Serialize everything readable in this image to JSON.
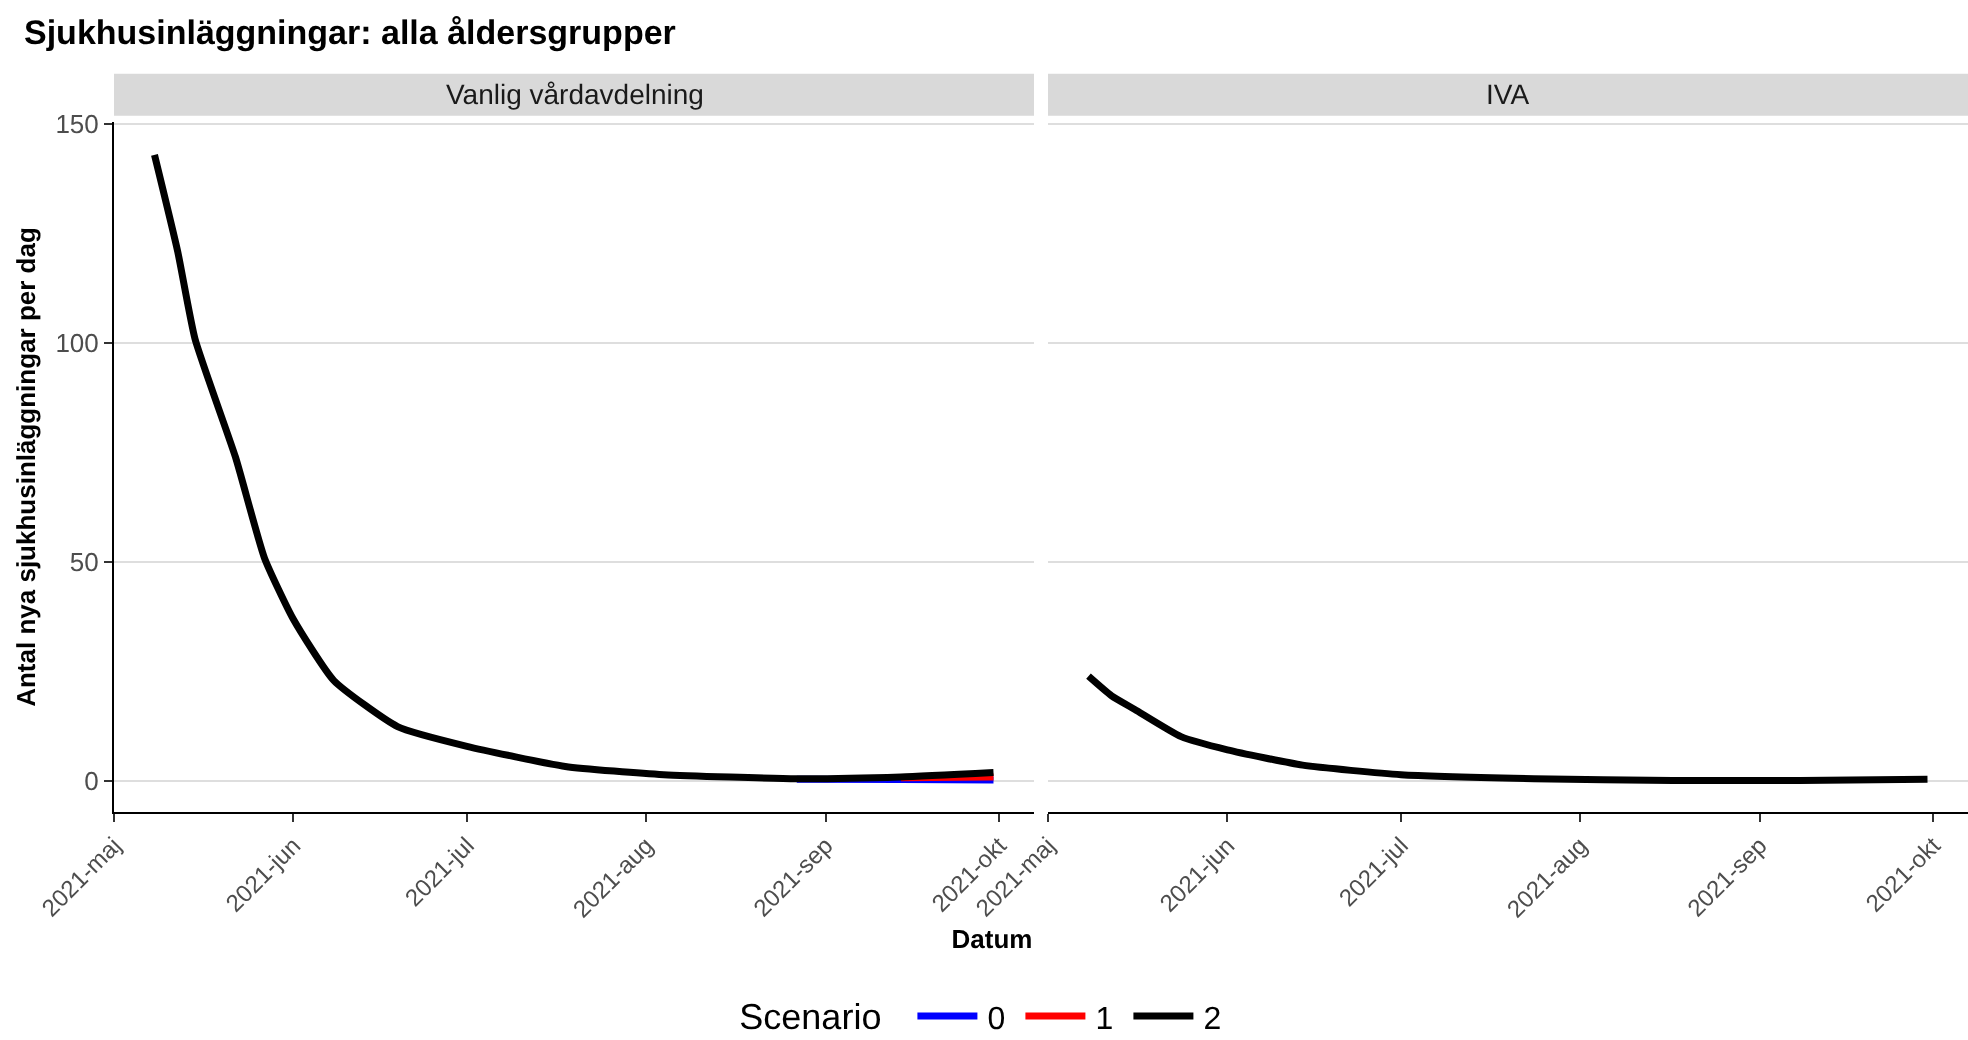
{
  "chart_data": [
    {
      "type": "line",
      "title": "Sjukhusinläggningar: alla åldersgrupper",
      "xlabel": "Datum",
      "ylabel": "Antal nya sjukhusinläggningar per dag",
      "legend_title": "Scenario",
      "legend": "bottom",
      "grid": "y",
      "annotations": [
        "Vanlig vårdavdelning"
      ],
      "xlim": [
        "2021-05-01",
        "2021-10-07"
      ],
      "xticks": [
        {
          "value": "2021-05-01",
          "label": "2021-maj"
        },
        {
          "value": "2021-06-01",
          "label": "2021-jun"
        },
        {
          "value": "2021-07-01",
          "label": "2021-jul"
        },
        {
          "value": "2021-08-01",
          "label": "2021-aug"
        },
        {
          "value": "2021-09-01",
          "label": "2021-sep"
        },
        {
          "value": "2021-10-01",
          "label": "2021-okt"
        }
      ],
      "ylim": [
        -7,
        150.5
      ],
      "yticks": [
        0,
        50,
        100,
        150
      ],
      "series": [
        {
          "name": "0",
          "color": "#0000ff",
          "x": [
            "2021-08-27",
            "2021-09-14",
            "2021-09-30"
          ],
          "values": [
            0.5,
            0.4,
            0.3
          ]
        },
        {
          "name": "1",
          "color": "#ff0000",
          "x": [
            "2021-09-14",
            "2021-09-30"
          ],
          "values": [
            0.8,
            1
          ]
        },
        {
          "name": "2",
          "color": "#000000",
          "x": [
            "2021-05-08",
            "2021-05-12",
            "2021-05-15",
            "2021-05-22",
            "2021-05-27",
            "2021-06-01",
            "2021-06-08",
            "2021-06-19",
            "2021-07-01",
            "2021-07-18",
            "2021-08-04",
            "2021-08-27",
            "2021-09-14",
            "2021-09-30"
          ],
          "values": [
            143,
            121,
            101,
            74,
            51,
            37,
            23,
            12.5,
            8,
            3.4,
            1.5,
            0.6,
            1,
            2
          ]
        }
      ]
    },
    {
      "type": "line",
      "annotations": [
        "IVA"
      ],
      "tick_labels": "x",
      "grid": "y",
      "xlim": [
        "2021-05-01",
        "2021-10-07"
      ],
      "xticks": [
        {
          "value": "2021-05-01",
          "label": "2021-maj"
        },
        {
          "value": "2021-06-01",
          "label": "2021-jun"
        },
        {
          "value": "2021-07-01",
          "label": "2021-jul"
        },
        {
          "value": "2021-08-01",
          "label": "2021-aug"
        },
        {
          "value": "2021-09-01",
          "label": "2021-sep"
        },
        {
          "value": "2021-10-01",
          "label": "2021-okt"
        }
      ],
      "ylim": [
        -7,
        150.5
      ],
      "yticks": [
        0,
        50,
        100,
        150
      ],
      "series": [
        {
          "name": "2",
          "color": "#000000",
          "x": [
            "2021-05-08",
            "2021-05-12",
            "2021-05-16",
            "2021-05-24",
            "2021-06-01",
            "2021-06-14",
            "2021-07-01",
            "2021-07-24",
            "2021-08-17",
            "2021-09-08",
            "2021-09-30"
          ],
          "values": [
            24,
            19.5,
            16.4,
            10.2,
            7.2,
            3.7,
            1.5,
            0.6,
            0.2,
            0.2,
            0.5
          ]
        }
      ]
    }
  ]
}
